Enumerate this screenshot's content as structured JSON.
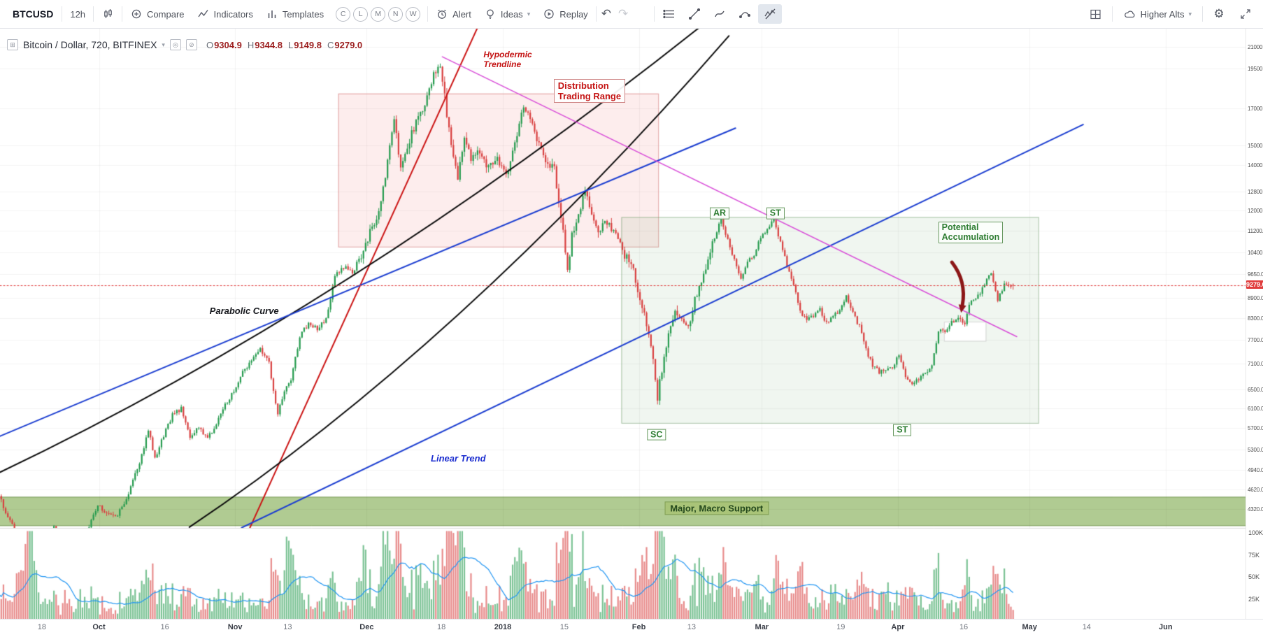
{
  "toolbar": {
    "symbol": "BTCUSD",
    "interval": "12h",
    "compare_label": "Compare",
    "indicators_label": "Indicators",
    "templates_label": "Templates",
    "layout_buttons": [
      "C",
      "L",
      "M",
      "N",
      "W"
    ],
    "alert_label": "Alert",
    "ideas_label": "Ideas",
    "replay_label": "Replay",
    "watchlist_label": "Higher Alts"
  },
  "legend": {
    "title": "Bitcoin / Dollar, 720, BITFINEX",
    "ohlc": {
      "o_label": "O",
      "o": "9304.9",
      "h_label": "H",
      "h": "9344.8",
      "l_label": "L",
      "l": "9149.8",
      "c_label": "C",
      "c": "9279.0"
    }
  },
  "price_axis": {
    "ticks": [
      "21000.0",
      "19500.0",
      "17000.0",
      "15000.0",
      "14000.0",
      "12800.0",
      "12000.0",
      "11200.0",
      "10400.0",
      "9650.0",
      "8900.0",
      "8300.0",
      "7700.0",
      "7100.0",
      "6500.0",
      "6100.0",
      "5700.0",
      "5300.0",
      "4940.0",
      "4620.0",
      "4320.0"
    ],
    "last_price": "9279.0"
  },
  "volume_axis": {
    "ticks": [
      {
        "label": "100K",
        "k": 100
      },
      {
        "label": "75K",
        "k": 75
      },
      {
        "label": "50K",
        "k": 50
      },
      {
        "label": "25K",
        "k": 25
      }
    ]
  },
  "time_axis": {
    "labels": [
      {
        "t": "18",
        "d": 10
      },
      {
        "t": "Oct",
        "d": 23,
        "m": true
      },
      {
        "t": "16",
        "d": 38
      },
      {
        "t": "Nov",
        "d": 54,
        "m": true
      },
      {
        "t": "13",
        "d": 66
      },
      {
        "t": "Dec",
        "d": 84,
        "m": true
      },
      {
        "t": "18",
        "d": 101
      },
      {
        "t": "2018",
        "d": 115,
        "m": true
      },
      {
        "t": "15",
        "d": 129
      },
      {
        "t": "Feb",
        "d": 146,
        "m": true
      },
      {
        "t": "13",
        "d": 158
      },
      {
        "t": "Mar",
        "d": 174,
        "m": true
      },
      {
        "t": "19",
        "d": 192
      },
      {
        "t": "Apr",
        "d": 205,
        "m": true
      },
      {
        "t": "16",
        "d": 220
      },
      {
        "t": "May",
        "d": 235,
        "m": true
      },
      {
        "t": "14",
        "d": 248
      },
      {
        "t": "Jun",
        "d": 266,
        "m": true
      }
    ]
  },
  "chart_data": {
    "type": "candlestick+volume",
    "symbol": "BTCUSD",
    "exchange": "BITFINEX",
    "timeframe_minutes": 720,
    "y_axis_log": true,
    "price_range_visible": [
      4050,
      21500
    ],
    "current_price": 9279.0,
    "last_candle": {
      "open": 9304.9,
      "high": 9344.8,
      "low": 9149.8,
      "close": 9279.0
    },
    "waypoints": [
      [
        0,
        4600
      ],
      [
        2,
        4280
      ],
      [
        4,
        4050
      ],
      [
        7,
        3080
      ],
      [
        9,
        3650
      ],
      [
        11,
        3850
      ],
      [
        13,
        4050
      ],
      [
        15,
        3900
      ],
      [
        17,
        3680
      ],
      [
        20,
        3950
      ],
      [
        23,
        4360
      ],
      [
        25,
        4280
      ],
      [
        27,
        4200
      ],
      [
        29,
        4400
      ],
      [
        31,
        4750
      ],
      [
        33,
        5200
      ],
      [
        34.5,
        5650
      ],
      [
        36,
        5150
      ],
      [
        38,
        5550
      ],
      [
        40,
        5950
      ],
      [
        42,
        6100
      ],
      [
        44,
        5550
      ],
      [
        46,
        5700
      ],
      [
        48,
        5500
      ],
      [
        50,
        5800
      ],
      [
        52,
        6150
      ],
      [
        54,
        6470
      ],
      [
        56,
        6900
      ],
      [
        58,
        7150
      ],
      [
        60,
        7450
      ],
      [
        62,
        7100
      ],
      [
        64,
        5950
      ],
      [
        65.5,
        6500
      ],
      [
        67,
        6700
      ],
      [
        69,
        7800
      ],
      [
        71,
        8150
      ],
      [
        73,
        8000
      ],
      [
        75,
        8250
      ],
      [
        77,
        9600
      ],
      [
        79,
        9900
      ],
      [
        81,
        9700
      ],
      [
        83,
        10300
      ],
      [
        84.5,
        10950
      ],
      [
        86,
        11400
      ],
      [
        87.5,
        12300
      ],
      [
        89,
        14300
      ],
      [
        90.5,
        16500
      ],
      [
        92,
        13700
      ],
      [
        94,
        15300
      ],
      [
        96,
        16600
      ],
      [
        98,
        17600
      ],
      [
        99.5,
        19000
      ],
      [
        100.8,
        19700
      ],
      [
        102,
        17700
      ],
      [
        103.5,
        14800
      ],
      [
        105,
        13300
      ],
      [
        106.5,
        15600
      ],
      [
        108,
        14200
      ],
      [
        110,
        14650
      ],
      [
        112,
        13900
      ],
      [
        114,
        14300
      ],
      [
        116,
        13400
      ],
      [
        118,
        15100
      ],
      [
        120,
        17100
      ],
      [
        121.5,
        16300
      ],
      [
        123,
        15300
      ],
      [
        125,
        14300
      ],
      [
        127,
        13800
      ],
      [
        128.5,
        11800
      ],
      [
        130,
        9800
      ],
      [
        131,
        11000
      ],
      [
        132.5,
        11900
      ],
      [
        134,
        12800
      ],
      [
        135.5,
        11700
      ],
      [
        137,
        11150
      ],
      [
        138.5,
        11550
      ],
      [
        140,
        11300
      ],
      [
        141.5,
        11050
      ],
      [
        143,
        10250
      ],
      [
        144.5,
        10100
      ],
      [
        146,
        9150
      ],
      [
        147.5,
        8400
      ],
      [
        149,
        7600
      ],
      [
        150.5,
        6350
      ],
      [
        151.5,
        6950
      ],
      [
        153,
        7900
      ],
      [
        154.5,
        8600
      ],
      [
        156,
        8250
      ],
      [
        157.5,
        8000
      ],
      [
        159,
        8900
      ],
      [
        160.5,
        9350
      ],
      [
        162,
        10200
      ],
      [
        163.5,
        10950
      ],
      [
        165,
        11650
      ],
      [
        166.5,
        10800
      ],
      [
        168,
        10100
      ],
      [
        169.5,
        9550
      ],
      [
        171,
        10000
      ],
      [
        172.5,
        10350
      ],
      [
        174,
        10900
      ],
      [
        175.5,
        11300
      ],
      [
        177,
        11620
      ],
      [
        178.5,
        10800
      ],
      [
        180,
        9900
      ],
      [
        181.5,
        9350
      ],
      [
        183,
        8450
      ],
      [
        184.5,
        8270
      ],
      [
        186,
        8400
      ],
      [
        187.5,
        8550
      ],
      [
        189,
        8150
      ],
      [
        190.5,
        8350
      ],
      [
        192,
        8500
      ],
      [
        193.5,
        8950
      ],
      [
        195,
        8450
      ],
      [
        196.5,
        8050
      ],
      [
        198,
        7450
      ],
      [
        199.5,
        7050
      ],
      [
        201,
        6900
      ],
      [
        202.5,
        7000
      ],
      [
        204,
        6950
      ],
      [
        205.5,
        7350
      ],
      [
        207,
        6800
      ],
      [
        208.5,
        6650
      ],
      [
        210,
        6750
      ],
      [
        211.5,
        6900
      ],
      [
        213,
        7050
      ],
      [
        214.5,
        7950
      ],
      [
        216,
        7900
      ],
      [
        217.5,
        8200
      ],
      [
        219,
        8300
      ],
      [
        220.5,
        8150
      ],
      [
        222,
        8870
      ],
      [
        223.5,
        8950
      ],
      [
        225,
        9350
      ],
      [
        226.5,
        9650
      ],
      [
        228,
        8870
      ],
      [
        229.5,
        9300
      ],
      [
        230.5,
        9350
      ],
      [
        231,
        9280
      ]
    ],
    "months_grid_days": [
      23,
      54,
      84,
      115,
      146,
      174,
      205,
      235,
      266
    ],
    "volume_spikes": [
      [
        7,
        88
      ],
      [
        34,
        26
      ],
      [
        66,
        82
      ],
      [
        83,
        70
      ],
      [
        88,
        66
      ],
      [
        91,
        58
      ],
      [
        96,
        40
      ],
      [
        100,
        56
      ],
      [
        103,
        70
      ],
      [
        105,
        72
      ],
      [
        118,
        48
      ],
      [
        120,
        42
      ],
      [
        129,
        62
      ],
      [
        133,
        40
      ],
      [
        147,
        50
      ],
      [
        150.5,
        92
      ],
      [
        154,
        45
      ],
      [
        160,
        35
      ],
      [
        165,
        38
      ],
      [
        172,
        30
      ],
      [
        177,
        40
      ],
      [
        183,
        35
      ],
      [
        190,
        25
      ],
      [
        196,
        25
      ],
      [
        202,
        32
      ],
      [
        208,
        26
      ],
      [
        214,
        30
      ],
      [
        220,
        24
      ],
      [
        226,
        36
      ],
      [
        229,
        28
      ]
    ],
    "shapes": {
      "hband": {
        "name": "major-macro-support-band",
        "price_top": 4500,
        "price_bottom": 4080,
        "fill": "rgba(150,185,110,0.75)",
        "stroke": "rgba(115,150,80,0.9)"
      },
      "boxes": [
        {
          "name": "distribution-range-box",
          "day1": 77.5,
          "day2": 150.4,
          "p1": 17900,
          "p2": 10600,
          "fill": "rgba(231,80,80,0.10)",
          "stroke": "rgba(204,90,90,0.55)"
        },
        {
          "name": "accumulation-box",
          "day1": 142,
          "day2": 237,
          "p1": 11730,
          "p2": 5800,
          "fill": "rgba(110,170,110,0.10)",
          "stroke": "rgba(100,150,95,0.55)"
        },
        {
          "name": "white-highlight-box",
          "day1": 215.5,
          "day2": 225,
          "p1": 8200,
          "p2": 7680,
          "fill": "rgba(255,255,255,0.95)",
          "stroke": "rgba(190,190,190,0.6)"
        }
      ],
      "lines": [
        {
          "name": "hypodermic-trendline",
          "color": "#cc1515",
          "width": 2,
          "pts": [
            [
              57,
              4000
            ],
            [
              110,
              23000
            ]
          ]
        },
        {
          "name": "parabolic-curve-1",
          "color": "#0c0c0c",
          "width": 2,
          "quad": [
            [
              0.5,
              4900
            ],
            [
              80,
              8660
            ],
            [
              160,
              22500
            ]
          ]
        },
        {
          "name": "parabolic-curve-2",
          "color": "#0c0c0c",
          "width": 2,
          "quad": [
            [
              43.6,
              4060
            ],
            [
              105,
              7540
            ],
            [
              166.5,
              21800
            ]
          ]
        },
        {
          "name": "blue-trend-upper",
          "color": "#1d3fd1",
          "width": 2,
          "pts": [
            [
              0.5,
              5545
            ],
            [
              168,
              15900
            ]
          ]
        },
        {
          "name": "blue-linear-trend",
          "color": "#1d3fd1",
          "width": 2,
          "pts": [
            [
              55.5,
              4052
            ],
            [
              247.2,
              16100
            ]
          ]
        },
        {
          "name": "magenta-downtrend",
          "color": "#d94fd9",
          "width": 1.5,
          "pts": [
            [
              101.2,
              20300
            ],
            [
              232.1,
              7790
            ]
          ]
        }
      ],
      "arrow": {
        "name": "breakout-arrow",
        "color": "#8c1717",
        "width": 5,
        "from": [
          217.3,
          10050
        ],
        "to": [
          219.7,
          8680
        ]
      },
      "price_line": {
        "price": 9279.0,
        "color": "#e03c3c"
      }
    },
    "annotations": [
      {
        "id": "hypodermic-label",
        "text": "Hypodermic\nTrendline",
        "style": "red-plain",
        "day": 110.6,
        "price": 20800,
        "anchor": "lt"
      },
      {
        "id": "distribution-label",
        "text": "Distribution\nTrading Range",
        "style": "red-boxed",
        "day": 126.6,
        "price": 18830,
        "anchor": "lt"
      },
      {
        "id": "parabolic-label",
        "text": "Parabolic Curve",
        "style": "black-plain",
        "day": 48.2,
        "price": 8660,
        "anchor": "lt"
      },
      {
        "id": "linear-label",
        "text": "Linear Trend",
        "style": "blue-plain",
        "day": 98.6,
        "price": 5230,
        "anchor": "lt"
      },
      {
        "id": "ar-label",
        "text": "AR",
        "style": "green-boxed",
        "day": 164.4,
        "price": 11880,
        "anchor": "c"
      },
      {
        "id": "st1-label",
        "text": "ST",
        "style": "green-boxed",
        "day": 177.1,
        "price": 11880,
        "anchor": "c"
      },
      {
        "id": "sc-label",
        "text": "SC",
        "style": "green-boxed",
        "day": 150.0,
        "price": 5570,
        "anchor": "c"
      },
      {
        "id": "st2-label",
        "text": "ST",
        "style": "green-boxed",
        "day": 206.0,
        "price": 5655,
        "anchor": "c"
      },
      {
        "id": "potential-label",
        "text": "Potential\nAccumulation",
        "style": "green-boxed",
        "day": 214.2,
        "price": 11560,
        "anchor": "lt"
      },
      {
        "id": "macro-label",
        "text": "Major, Macro Support",
        "style": "olive-boxed",
        "day": 163.7,
        "price": 4330,
        "anchor": "c"
      }
    ]
  }
}
